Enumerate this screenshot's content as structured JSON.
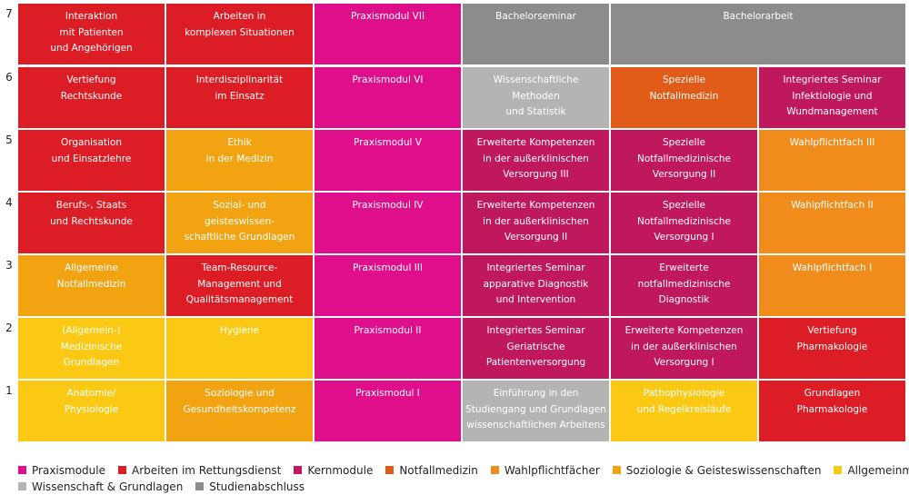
{
  "colors": {
    "praxis": "#df0f8c",
    "rettung": "#dc1d25",
    "kern": "#c0185d",
    "notfall": "#e05a18",
    "wahlpflicht": "#f08c1c",
    "soziologie": "#f2a312",
    "allgemein": "#fbc914",
    "wissenschaft": "#b4b4b4",
    "abschluss": "#8c8c8c"
  },
  "rows": [
    {
      "label": "7",
      "cells": [
        {
          "text": "Interaktion\nmit Patienten\nund Angehörigen",
          "cat": "rettung"
        },
        {
          "text": "Arbeiten in\nkomplexen Situationen",
          "cat": "rettung"
        },
        {
          "text": "Praxismodul VII",
          "cat": "praxis"
        },
        {
          "text": "Bachelorseminar",
          "cat": "abschluss"
        },
        {
          "text": "Bachelorarbeit",
          "cat": "abschluss",
          "span": 2
        }
      ]
    },
    {
      "label": "6",
      "cells": [
        {
          "text": "Vertiefung\nRechtskunde",
          "cat": "rettung"
        },
        {
          "text": "Interdisziplinarität\nim Einsatz",
          "cat": "rettung"
        },
        {
          "text": "Praxismodul VI",
          "cat": "praxis"
        },
        {
          "text": "Wissenschaftliche\nMethoden\nund Statistik",
          "cat": "wissenschaft"
        },
        {
          "text": "Spezielle\nNotfallmedizin",
          "cat": "notfall"
        },
        {
          "text": "Integriertes Seminar\nInfektiologie und\nWundmanagement",
          "cat": "kern"
        }
      ]
    },
    {
      "label": "5",
      "cells": [
        {
          "text": "Organisation\nund Einsatzlehre",
          "cat": "rettung"
        },
        {
          "text": "Ethik\nin der Medizin",
          "cat": "soziologie"
        },
        {
          "text": "Praxismodul V",
          "cat": "praxis"
        },
        {
          "text": "Erweiterte Kompetenzen\nin der außerklinischen\nVersorgung III",
          "cat": "kern"
        },
        {
          "text": "Spezielle\nNotfallmedizinische\nVersorgung II",
          "cat": "kern"
        },
        {
          "text": "Wahlpflichtfach III",
          "cat": "wahlpflicht"
        }
      ]
    },
    {
      "label": "4",
      "cells": [
        {
          "text": "Berufs-, Staats\nund Rechtskunde",
          "cat": "rettung"
        },
        {
          "text": "Sozial- und\ngeisteswissen-\nschaftliche Grundlagen",
          "cat": "soziologie"
        },
        {
          "text": "Praxismodul IV",
          "cat": "praxis"
        },
        {
          "text": "Erweiterte Kompetenzen\nin der außerklinischen\nVersorgung II",
          "cat": "kern"
        },
        {
          "text": "Spezielle\nNotfallmedizinische\nVersorgung I",
          "cat": "kern"
        },
        {
          "text": "Wahlpflichtfach II",
          "cat": "wahlpflicht"
        }
      ]
    },
    {
      "label": "3",
      "cells": [
        {
          "text": "Allgemeine\nNotfallmedizin",
          "cat": "soziologie"
        },
        {
          "text": "Team-Resource-\nManagement und\nQualitätsmanagement",
          "cat": "rettung"
        },
        {
          "text": "Praxismodul III",
          "cat": "praxis"
        },
        {
          "text": "Integriertes Seminar\napparative Diagnostik\nund Intervention",
          "cat": "kern"
        },
        {
          "text": "Erweiterte\nnotfallmedizinische\nDiagnostik",
          "cat": "kern"
        },
        {
          "text": "Wahlpflichtfach I",
          "cat": "wahlpflicht"
        }
      ]
    },
    {
      "label": "2",
      "cells": [
        {
          "text": "(Allgemein-)\nMedizinische\nGrundlagen",
          "cat": "allgemein"
        },
        {
          "text": "Hygiene",
          "cat": "allgemein"
        },
        {
          "text": "Praxismodul II",
          "cat": "praxis"
        },
        {
          "text": "Integriertes Seminar\nGeriatrische\nPatientenversorgung",
          "cat": "kern"
        },
        {
          "text": "Erweiterte Kompetenzen\nin der außerklinischen\nVersorgung I",
          "cat": "kern"
        },
        {
          "text": "Vertiefung\nPharmakologie",
          "cat": "rettung"
        }
      ]
    },
    {
      "label": "1",
      "cells": [
        {
          "text": "Anatomie/\nPhysiologie",
          "cat": "allgemein"
        },
        {
          "text": "Soziologie und\nGesundheitskompetenz",
          "cat": "soziologie"
        },
        {
          "text": "Praxismodul I",
          "cat": "praxis"
        },
        {
          "text": "Einführung in den\nStudiengang und Grundlagen\nwissenschaftlichen Arbeitens",
          "cat": "wissenschaft"
        },
        {
          "text": "Pathophysiologie\nund Regelkreisläufe",
          "cat": "allgemein"
        },
        {
          "text": "Grundlagen\nPharmakologie",
          "cat": "rettung"
        }
      ]
    }
  ],
  "legend": [
    {
      "label": "Praxismodule",
      "cat": "praxis",
      "line": 1
    },
    {
      "label": "Arbeiten im Rettungsdienst",
      "cat": "rettung",
      "line": 1
    },
    {
      "label": "Kernmodule",
      "cat": "kern",
      "line": 1
    },
    {
      "label": "Notfallmedizin",
      "cat": "notfall",
      "line": 1
    },
    {
      "label": "Wahlpflichtfächer",
      "cat": "wahlpflicht",
      "line": 1
    },
    {
      "label": "Soziologie & Geisteswissenschaften",
      "cat": "soziologie",
      "line": 1
    },
    {
      "label": "Allgemeinmedizin",
      "cat": "allgemein",
      "line": 1
    },
    {
      "label": "Wissenschaft & Grundlagen",
      "cat": "wissenschaft",
      "line": 2
    },
    {
      "label": "Studienabschluss",
      "cat": "abschluss",
      "line": 2
    }
  ]
}
